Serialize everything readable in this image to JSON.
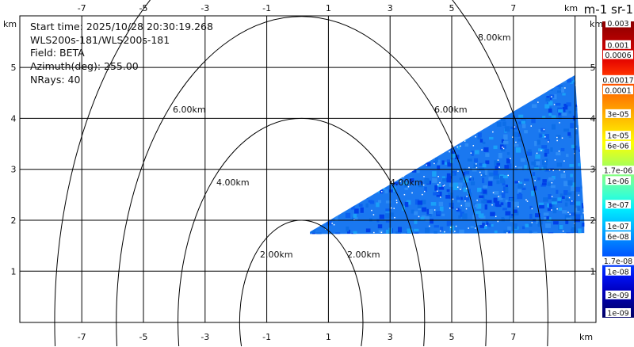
{
  "info": {
    "start_time": "Start time: 2025/10/28 20:30:19.268",
    "instrument": "WLS200s-181/WLS200s-181",
    "field": "Field: BETA",
    "azimuth": "Azimuth(deg): 255.00",
    "nrays": "NRays: 40"
  },
  "chart_data": {
    "type": "heatmap",
    "title": "",
    "x_unit_label": "km",
    "y_unit_label": "km",
    "xlim": [
      -9,
      9.7
    ],
    "ylim": [
      0,
      6
    ],
    "x_ticks": [
      "-7",
      "-5",
      "-3",
      "-1",
      "1",
      "3",
      "5",
      "7"
    ],
    "x_tick_values": [
      -7,
      -5,
      -3,
      -1,
      1,
      3,
      5,
      7
    ],
    "x_grid_values": [
      -7,
      -5,
      -3,
      -1,
      1,
      3,
      5,
      7,
      9
    ],
    "y_ticks": [
      "1",
      "2",
      "3",
      "4",
      "5"
    ],
    "y_tick_values": [
      1,
      2,
      3,
      4,
      5
    ],
    "grid": true,
    "range_rings": [
      {
        "radius_km": 2,
        "label": "2.00km"
      },
      {
        "radius_km": 4,
        "label": "4.00km"
      },
      {
        "radius_km": 6,
        "label": "6.00km"
      },
      {
        "radius_km": 8,
        "label": "8.00km"
      }
    ],
    "data_region": {
      "description_values_km": [
        [
          0.4,
          1.77
        ],
        [
          9.0,
          4.85
        ],
        [
          9.3,
          2.0
        ],
        [
          9.3,
          1.75
        ],
        [
          0.4,
          1.73
        ]
      ],
      "dominant_value_range": [
        1e-08,
        1e-07
      ],
      "dominant_color": "#1a78f0"
    },
    "colorbar": {
      "unit_label": "m-1 sr-1",
      "scale": "log",
      "range": [
        1e-09,
        0.003
      ],
      "labels": [
        "0.003",
        "0.001",
        "0.0006",
        "0.00017",
        "0.0001",
        "3e-05",
        "1e-05",
        "6e-06",
        "1.7e-06",
        "1e-06",
        "3e-07",
        "1e-07",
        "6e-08",
        "1.7e-08",
        "1e-08",
        "3e-09",
        "1e-09"
      ],
      "label_values": [
        0.003,
        0.001,
        0.0006,
        0.00017,
        0.0001,
        3e-05,
        1e-05,
        6e-06,
        1.7e-06,
        1e-06,
        3e-07,
        1e-07,
        6e-08,
        1.7e-08,
        1e-08,
        3e-09,
        1e-09
      ],
      "colors_top_to_bottom": [
        "#8b0000",
        "#a80000",
        "#c80000",
        "#e80a00",
        "#ff3300",
        "#ff6600",
        "#ff8c00",
        "#ffb300",
        "#ffd900",
        "#ffff00",
        "#ccff33",
        "#99ff66",
        "#66ffaa",
        "#33ffd5",
        "#00eaff",
        "#00c0ff",
        "#0090ff",
        "#0066ff",
        "#0040ff",
        "#0010ee",
        "#0000c0",
        "#000090",
        "#000066"
      ]
    }
  }
}
